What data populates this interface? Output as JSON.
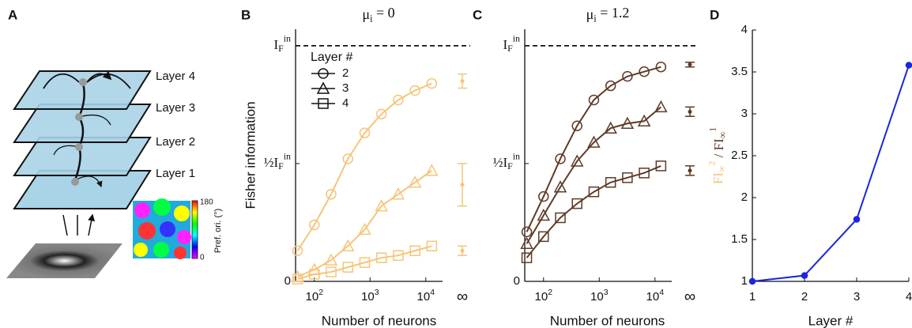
{
  "panels": [
    "A",
    "B",
    "C",
    "D"
  ],
  "diagram": {
    "layers": [
      "Layer 4",
      "Layer 3",
      "Layer 2",
      "Layer 1"
    ],
    "colorbar": {
      "label": "Pref. ori. (°)",
      "ticks": [
        180,
        0
      ]
    }
  },
  "chart_data": [
    {
      "type": "line",
      "title": "μ_{i} = 0",
      "title_color": "#f5c57a",
      "x_label": "Number of neurons",
      "y_label": "Fisher information",
      "x": [
        50,
        100,
        200,
        400,
        800,
        1600,
        3200,
        6400,
        12800
      ],
      "xlim": [
        46,
        20000
      ],
      "log_x": true,
      "xticks": [
        {
          "value": 100,
          "label": "10^{2}"
        },
        {
          "value": 1000,
          "label": "10^{3}"
        },
        {
          "value": 10000,
          "label": "10^{4}"
        }
      ],
      "limit_label": "∞",
      "ylim": [
        0,
        1.07
      ],
      "yticks": [
        0,
        {
          "value": 0.5,
          "label": "½I_{F}^{in}"
        },
        {
          "value": 1,
          "label": "I_{F}^{in}"
        }
      ],
      "dashed_line": 1,
      "legend": true,
      "legend_title": "Layer #",
      "series": [
        {
          "name": "2",
          "marker": "circle",
          "color": "#f5c57a",
          "values": [
            0.13,
            0.24,
            0.37,
            0.52,
            0.63,
            0.71,
            0.77,
            0.81,
            0.84
          ],
          "inf_value": 0.85,
          "inf_error": 0.03
        },
        {
          "name": "3",
          "marker": "triangle",
          "color": "#f5c57a",
          "values": [
            0.02,
            0.05,
            0.09,
            0.15,
            0.22,
            0.32,
            0.37,
            0.42,
            0.47
          ],
          "inf_value": 0.41,
          "inf_error": 0.09
        },
        {
          "name": "4",
          "marker": "square",
          "color": "#f5c57a",
          "values": [
            0.01,
            0.03,
            0.04,
            0.06,
            0.08,
            0.1,
            0.11,
            0.13,
            0.15
          ],
          "inf_value": 0.13,
          "inf_error": 0.02
        }
      ]
    },
    {
      "type": "line",
      "title": "μ_{i} = 1.2",
      "title_color": "#5e3a26",
      "x_label": "Number of neurons",
      "x": [
        50,
        100,
        200,
        400,
        800,
        1600,
        3200,
        6400,
        12800
      ],
      "xlim": [
        46,
        20000
      ],
      "log_x": true,
      "xticks": [
        {
          "value": 100,
          "label": "10^{2}"
        },
        {
          "value": 1000,
          "label": "10^{3}"
        },
        {
          "value": 10000,
          "label": "10^{4}"
        }
      ],
      "limit_label": "∞",
      "ylim": [
        0,
        1.07
      ],
      "yticks": [
        0,
        {
          "value": 0.5,
          "label": "½I_{F}^{in}"
        },
        {
          "value": 1,
          "label": "I_{F}^{in}"
        }
      ],
      "dashed_line": 1,
      "series": [
        {
          "marker": "circle",
          "color": "#5e3a26",
          "values": [
            0.21,
            0.36,
            0.52,
            0.66,
            0.77,
            0.83,
            0.87,
            0.89,
            0.91
          ],
          "inf_value": 0.92,
          "inf_error": 0.01
        },
        {
          "marker": "triangle",
          "color": "#5e3a26",
          "values": [
            0.16,
            0.28,
            0.4,
            0.51,
            0.59,
            0.65,
            0.67,
            0.68,
            0.74
          ],
          "inf_value": 0.72,
          "inf_error": 0.02
        },
        {
          "marker": "square",
          "color": "#5e3a26",
          "values": [
            0.1,
            0.19,
            0.27,
            0.33,
            0.38,
            0.42,
            0.44,
            0.46,
            0.49
          ],
          "inf_value": 0.47,
          "inf_error": 0.02
        }
      ]
    },
    {
      "type": "line",
      "x_label": "Layer #",
      "y_label": "FI_{∞}^{2} / FI_{∞}^{1}",
      "x": [
        1,
        2,
        3,
        4
      ],
      "xlim": [
        1,
        4
      ],
      "xticks": [
        1,
        2,
        3,
        4
      ],
      "ylim": [
        1,
        4
      ],
      "yticks": [
        1,
        1.5,
        2,
        2.5,
        3,
        3.5,
        4
      ],
      "series": [
        {
          "marker": "dot",
          "color": "#1c25e0",
          "values": [
            1,
            1.07,
            1.74,
            3.58
          ]
        }
      ]
    }
  ]
}
